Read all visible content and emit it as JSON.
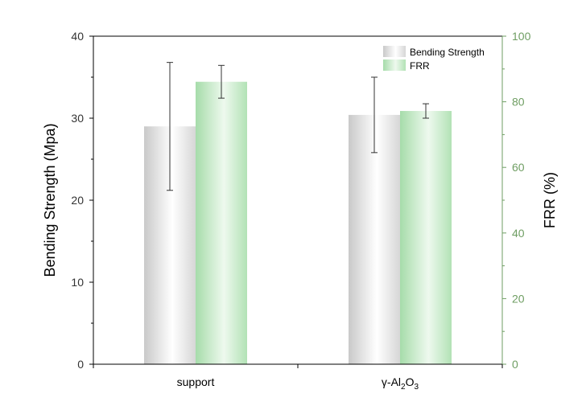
{
  "chart_data": {
    "type": "bar",
    "categories": [
      "support",
      "γ-Al2O3"
    ],
    "category_labels": [
      {
        "base": "support",
        "sub": ""
      },
      {
        "base": "γ-Al",
        "sub": "2",
        "mid": "O",
        "sub2": "3"
      }
    ],
    "series": [
      {
        "name": "Bending Strength",
        "axis": "left",
        "values": [
          29.0,
          30.4
        ],
        "errors": [
          7.8,
          4.6
        ],
        "color": "#c8c8c8"
      },
      {
        "name": "FRR",
        "axis": "right",
        "values": [
          86.1,
          77.2
        ],
        "errors": [
          5.0,
          2.2
        ],
        "color": "#a9dcae"
      }
    ],
    "ylabel": "Bending Strength (Mpa)",
    "ylabel_right": "FRR (%)",
    "ylim": [
      0,
      40
    ],
    "ylim_right": [
      0,
      100
    ],
    "yticks": [
      0,
      10,
      20,
      30,
      40
    ],
    "yticks_right": [
      0,
      20,
      40,
      60,
      80,
      100
    ],
    "right_axis_color": "#6f9e63",
    "legend_position": "top-right",
    "grid": false
  }
}
